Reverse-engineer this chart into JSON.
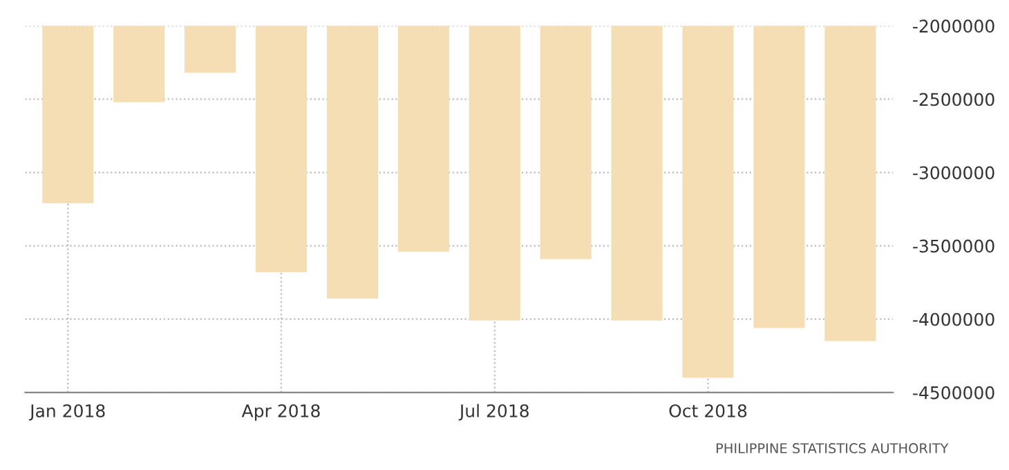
{
  "chart_data": {
    "type": "bar",
    "categories": [
      "Jan 2018",
      null,
      null,
      "Apr 2018",
      null,
      null,
      "Jul 2018",
      null,
      null,
      "Oct 2018",
      null,
      null
    ],
    "values": [
      -3210000,
      -2520000,
      -2320000,
      -3680000,
      -3860000,
      -3540000,
      -4010000,
      -3590000,
      -4010000,
      -4400000,
      -4060000,
      -4150000
    ],
    "color": "#f5deb3",
    "ylim": [
      -4500000,
      -2000000
    ],
    "yticks": [
      -4500000,
      -4000000,
      -3500000,
      -3000000,
      -2500000,
      -2000000
    ],
    "grid": true,
    "annotations": [
      "PHILIPPINE STATISTICS AUTHORITY"
    ]
  }
}
